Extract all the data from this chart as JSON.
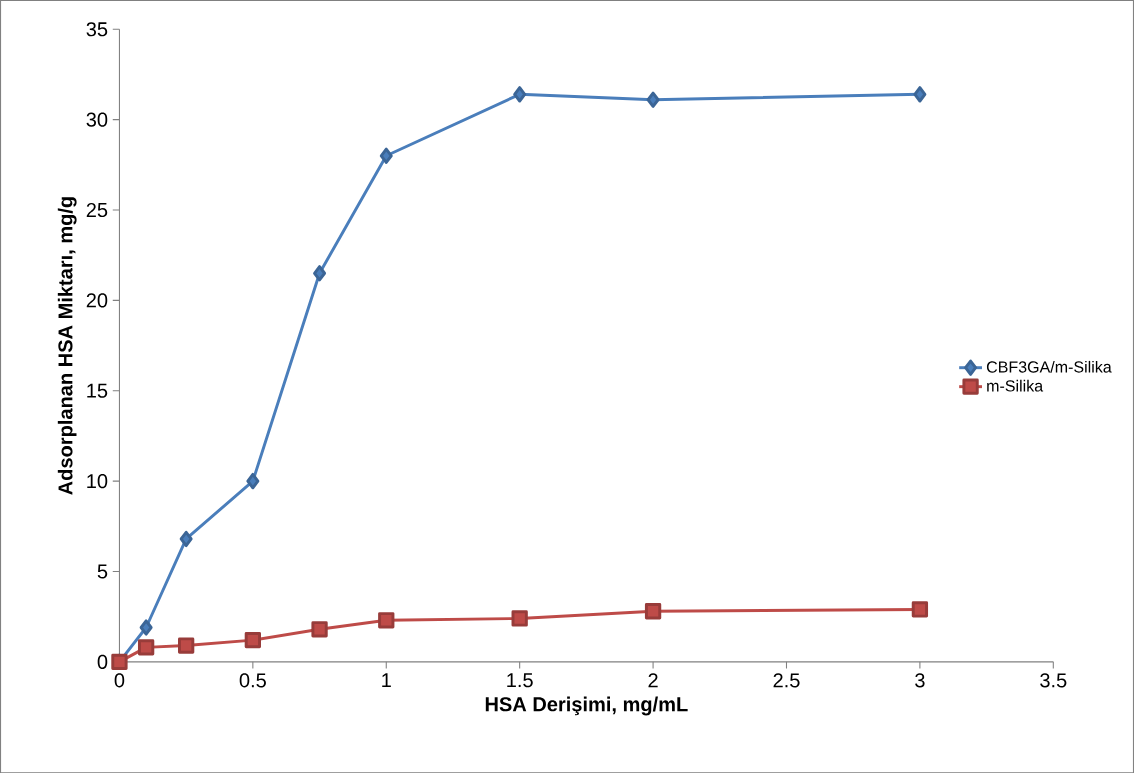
{
  "chart_data": {
    "type": "line",
    "xlabel": "HSA Derişimi, mg/mL",
    "ylabel": "Adsorplanan HSA Miktarı, mg/g",
    "x": [
      0,
      0.1,
      0.25,
      0.5,
      0.75,
      1,
      1.5,
      2,
      3
    ],
    "series": [
      {
        "name": "CBF3GA/m-Silika",
        "color": "#4a7ebb",
        "marker": "diamond",
        "values": [
          0,
          1.9,
          6.8,
          10.0,
          21.5,
          28.0,
          31.4,
          31.1,
          31.4
        ]
      },
      {
        "name": "m-Silika",
        "color": "#be4b48",
        "marker": "square",
        "values": [
          0,
          0.8,
          0.9,
          1.2,
          1.8,
          2.3,
          2.4,
          2.8,
          2.9
        ]
      }
    ],
    "xlim": [
      0,
      3.5
    ],
    "xticks": [
      0,
      0.5,
      1,
      1.5,
      2,
      2.5,
      3,
      3.5
    ],
    "ylim": [
      0,
      35
    ],
    "yticks": [
      0,
      5,
      10,
      15,
      20,
      25,
      30,
      35
    ],
    "grid": false,
    "legend": "right",
    "line_style": "solid"
  }
}
